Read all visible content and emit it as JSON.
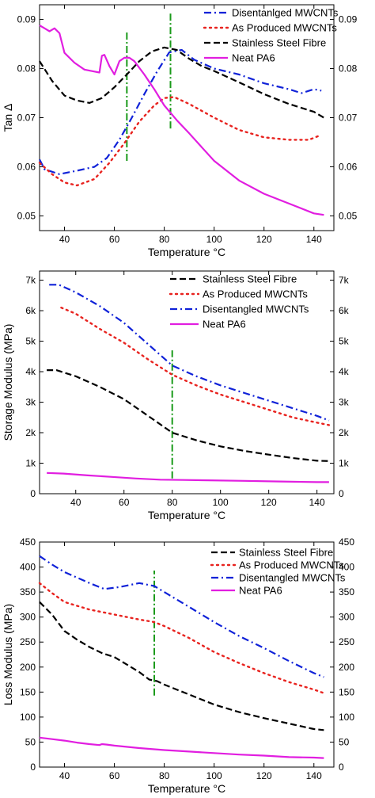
{
  "series_styles": [
    {
      "key": "ssf",
      "color": "#000000",
      "dash": "8,4",
      "width": 2.2
    },
    {
      "key": "ap",
      "color": "#e8231f",
      "dash": "2,5",
      "width": 2.4
    },
    {
      "key": "dis",
      "color": "#1022d8",
      "dash": "9,4,2,4",
      "width": 2.2
    },
    {
      "key": "pa6",
      "color": "#e11ee0",
      "dash": "",
      "width": 2.2
    }
  ],
  "marker_color": "#1a9a1a",
  "chart_data": [
    {
      "type": "line",
      "xlabel": "Temperature",
      "xunit": "°C",
      "ylabel": "Tan Δ",
      "xlim": [
        30,
        148
      ],
      "ylim": [
        0.047,
        0.093
      ],
      "xticks": [
        {
          "v": 40,
          "t": "40"
        },
        {
          "v": 60,
          "t": "60"
        },
        {
          "v": 80,
          "t": "80"
        },
        {
          "v": 100,
          "t": "100"
        },
        {
          "v": 120,
          "t": "120"
        },
        {
          "v": 140,
          "t": "140"
        }
      ],
      "yticks": [
        {
          "v": 0.05,
          "t": "0.05"
        },
        {
          "v": 0.06,
          "t": "0.06"
        },
        {
          "v": 0.07,
          "t": "0.07"
        },
        {
          "v": 0.08,
          "t": "0.08"
        },
        {
          "v": 0.09,
          "t": "0.09"
        }
      ],
      "vlines": [
        {
          "x": 65,
          "y0": 0.0612,
          "y1": 0.0875
        },
        {
          "x": 82.5,
          "y0": 0.0678,
          "y1": 0.0915
        }
      ],
      "series": [
        {
          "key": "dis",
          "name": "Disentanlged MWCNTs",
          "x": [
            30,
            32,
            38,
            45,
            52,
            57,
            62,
            67,
            72,
            77,
            82,
            87,
            92,
            100,
            110,
            120,
            130,
            135,
            140,
            143
          ],
          "y": [
            0.0615,
            0.0595,
            0.0585,
            0.0592,
            0.06,
            0.0618,
            0.0655,
            0.07,
            0.0748,
            0.0793,
            0.0833,
            0.0838,
            0.0818,
            0.08,
            0.0788,
            0.077,
            0.0758,
            0.075,
            0.0758,
            0.0755
          ]
        },
        {
          "key": "ap",
          "name": "As Produced MWCNTs",
          "x": [
            30,
            35,
            40,
            45,
            52,
            58,
            64,
            70,
            76,
            80,
            84,
            90,
            100,
            110,
            120,
            130,
            138,
            143
          ],
          "y": [
            0.0608,
            0.0585,
            0.0568,
            0.0562,
            0.0575,
            0.0608,
            0.0648,
            0.0692,
            0.0725,
            0.074,
            0.0742,
            0.0728,
            0.07,
            0.0675,
            0.066,
            0.0655,
            0.0655,
            0.0665
          ]
        },
        {
          "key": "ssf",
          "name": "Stainless Steel Fibre",
          "x": [
            30,
            35,
            40,
            45,
            50,
            55,
            60,
            65,
            70,
            75,
            80,
            85,
            90,
            95,
            100,
            110,
            120,
            130,
            140,
            144
          ],
          "y": [
            0.0815,
            0.0775,
            0.0745,
            0.0735,
            0.073,
            0.074,
            0.0762,
            0.0788,
            0.0815,
            0.0835,
            0.0843,
            0.0838,
            0.082,
            0.0805,
            0.0795,
            0.0772,
            0.0748,
            0.0728,
            0.0712,
            0.07
          ]
        },
        {
          "key": "pa6",
          "name": "Neat PA6",
          "x": [
            30,
            32,
            34,
            36,
            38,
            40,
            44,
            48,
            52,
            54,
            55,
            56,
            58,
            60,
            62,
            64,
            66,
            68,
            72,
            76,
            80,
            85,
            90,
            95,
            100,
            110,
            120,
            130,
            140,
            144
          ],
          "y": [
            0.0888,
            0.0882,
            0.0876,
            0.0882,
            0.0872,
            0.0832,
            0.0812,
            0.0798,
            0.0794,
            0.0792,
            0.0826,
            0.0828,
            0.0805,
            0.0788,
            0.0815,
            0.0822,
            0.0822,
            0.0815,
            0.0788,
            0.0758,
            0.0725,
            0.0695,
            0.0668,
            0.064,
            0.0612,
            0.0572,
            0.0545,
            0.0525,
            0.0505,
            0.0502
          ]
        }
      ]
    },
    {
      "type": "line",
      "xlabel": "Temperature",
      "xunit": "°C",
      "ylabel": "Storage Modulus (MPa)",
      "xlim": [
        25,
        147
      ],
      "ylim": [
        0,
        7300
      ],
      "xticks": [
        {
          "v": 40,
          "t": "40"
        },
        {
          "v": 60,
          "t": "60"
        },
        {
          "v": 80,
          "t": "80"
        },
        {
          "v": 100,
          "t": "100"
        },
        {
          "v": 120,
          "t": "120"
        },
        {
          "v": 140,
          "t": "140"
        }
      ],
      "yticks": [
        {
          "v": 0,
          "t": "0"
        },
        {
          "v": 1000,
          "t": "1k"
        },
        {
          "v": 2000,
          "t": "2k"
        },
        {
          "v": 3000,
          "t": "3k"
        },
        {
          "v": 4000,
          "t": "4k"
        },
        {
          "v": 5000,
          "t": "5k"
        },
        {
          "v": 6000,
          "t": "6k"
        },
        {
          "v": 7000,
          "t": "7k"
        }
      ],
      "vlines": [
        {
          "x": 80,
          "y0": 500,
          "y1": 4700
        }
      ],
      "series": [
        {
          "key": "ssf",
          "name": "Stainless Steel Fibre",
          "x": [
            28,
            32,
            40,
            50,
            60,
            70,
            80,
            90,
            100,
            110,
            120,
            130,
            140,
            145
          ],
          "y": [
            4050,
            4050,
            3850,
            3500,
            3100,
            2550,
            2000,
            1750,
            1550,
            1400,
            1280,
            1170,
            1080,
            1070
          ]
        },
        {
          "key": "ap",
          "name": "As Produced MWCNTs",
          "x": [
            34,
            40,
            50,
            60,
            70,
            80,
            90,
            100,
            110,
            120,
            130,
            140,
            145
          ],
          "y": [
            6100,
            5900,
            5400,
            4950,
            4400,
            3900,
            3550,
            3250,
            3000,
            2750,
            2500,
            2330,
            2250
          ]
        },
        {
          "key": "dis",
          "name": "Disentangled MWCNTs",
          "x": [
            29,
            33,
            40,
            50,
            60,
            70,
            80,
            90,
            100,
            110,
            120,
            130,
            140,
            145
          ],
          "y": [
            6850,
            6850,
            6600,
            6150,
            5600,
            4900,
            4200,
            3850,
            3550,
            3300,
            3050,
            2800,
            2550,
            2400
          ]
        },
        {
          "key": "pa6",
          "name": "Neat PA6",
          "x": [
            28,
            35,
            45,
            55,
            65,
            75,
            85,
            95,
            110,
            125,
            140,
            145
          ],
          "y": [
            680,
            660,
            600,
            550,
            500,
            460,
            450,
            440,
            420,
            400,
            380,
            380
          ]
        }
      ]
    },
    {
      "type": "line",
      "xlabel": "Temperature",
      "xunit": "°C",
      "ylabel": "Loss Modulus (MPa)",
      "xlim": [
        30,
        148
      ],
      "ylim": [
        0,
        450
      ],
      "xticks": [
        {
          "v": 40,
          "t": "40"
        },
        {
          "v": 60,
          "t": "60"
        },
        {
          "v": 80,
          "t": "80"
        },
        {
          "v": 100,
          "t": "100"
        },
        {
          "v": 120,
          "t": "120"
        },
        {
          "v": 140,
          "t": "140"
        }
      ],
      "yticks": [
        {
          "v": 0,
          "t": "0"
        },
        {
          "v": 50,
          "t": "50"
        },
        {
          "v": 100,
          "t": "100"
        },
        {
          "v": 150,
          "t": "150"
        },
        {
          "v": 200,
          "t": "200"
        },
        {
          "v": 250,
          "t": "250"
        },
        {
          "v": 300,
          "t": "300"
        },
        {
          "v": 350,
          "t": "350"
        },
        {
          "v": 400,
          "t": "400"
        },
        {
          "v": 450,
          "t": "450"
        }
      ],
      "vlines": [
        {
          "x": 76,
          "y0": 143,
          "y1": 393
        }
      ],
      "series": [
        {
          "key": "ssf",
          "name": "Stainless Steel Fibre",
          "x": [
            30,
            35,
            40,
            45,
            50,
            55,
            60,
            65,
            70,
            74,
            77,
            80,
            90,
            100,
            110,
            120,
            130,
            140,
            144
          ],
          "y": [
            330,
            305,
            272,
            255,
            240,
            228,
            220,
            205,
            190,
            175,
            172,
            165,
            145,
            125,
            110,
            98,
            87,
            76,
            74
          ]
        },
        {
          "key": "ap",
          "name": "As Produced MWCNTs",
          "x": [
            30,
            35,
            40,
            50,
            60,
            70,
            76,
            80,
            90,
            100,
            110,
            120,
            130,
            140,
            144
          ],
          "y": [
            368,
            348,
            330,
            315,
            305,
            295,
            290,
            282,
            258,
            230,
            208,
            188,
            170,
            155,
            148
          ]
        },
        {
          "key": "dis",
          "name": "Disentangled MWCNTs",
          "x": [
            30,
            35,
            40,
            50,
            56,
            62,
            70,
            76,
            80,
            90,
            100,
            110,
            120,
            130,
            140,
            144
          ],
          "y": [
            422,
            405,
            390,
            368,
            356,
            360,
            368,
            362,
            350,
            320,
            290,
            262,
            238,
            212,
            188,
            180
          ]
        },
        {
          "key": "pa6",
          "name": "Neat PA6",
          "x": [
            30,
            35,
            40,
            45,
            50,
            54,
            55,
            57,
            60,
            70,
            80,
            90,
            100,
            110,
            120,
            130,
            140,
            144
          ],
          "y": [
            59,
            56,
            53,
            49,
            46,
            44,
            46,
            45,
            43,
            38,
            34,
            31,
            28,
            25,
            23,
            20,
            19,
            18
          ]
        }
      ]
    }
  ]
}
